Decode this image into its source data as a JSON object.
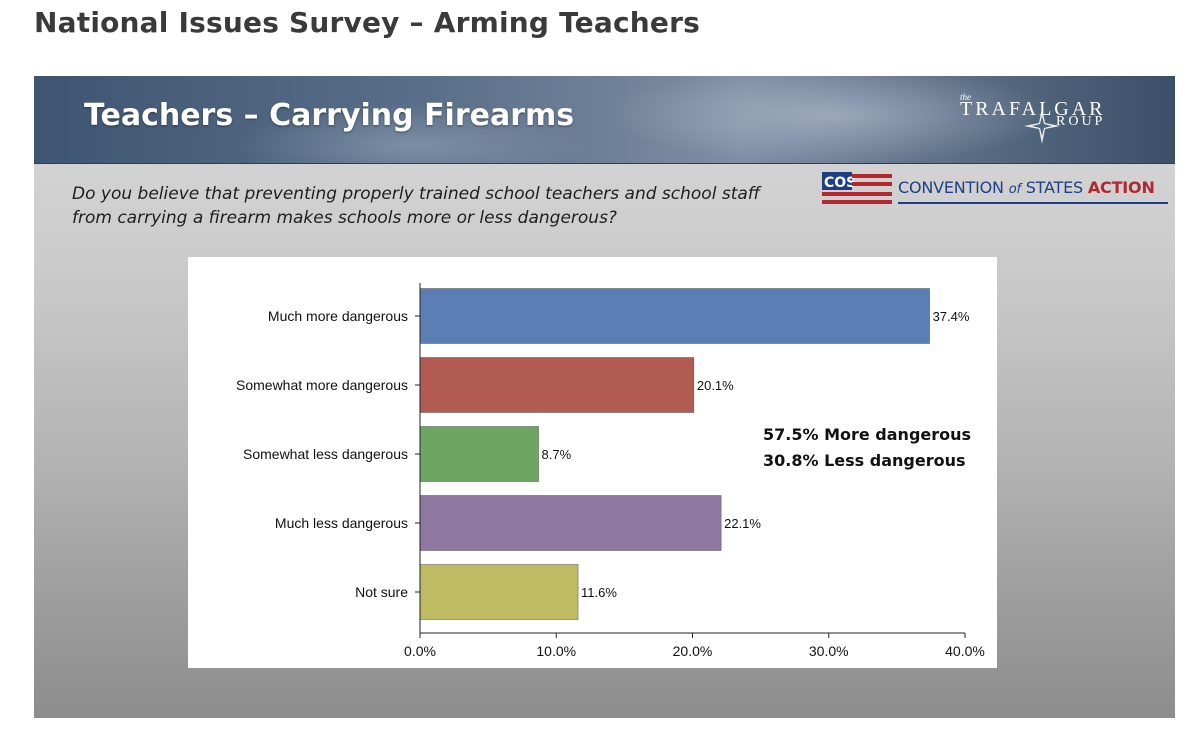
{
  "page": {
    "title": "National Issues Survey – Arming Teachers"
  },
  "slide": {
    "title": "Teachers – Carrying Firearms",
    "question_line1": "Do you believe that preventing properly trained school teachers and school staff",
    "question_line2": "from carrying a firearm makes schools more or less dangerous?",
    "summary_line1": "57.5% More dangerous",
    "summary_line2": "30.8% Less dangerous"
  },
  "logos": {
    "trafalgar": {
      "the": "the",
      "line1": "TRAFALGAR",
      "line2": "ROUP"
    },
    "cos": {
      "flag_text": "COS",
      "text_main": "CONVENTION ",
      "text_of": "of",
      "text_states": " STATES ",
      "text_action": "ACTION"
    }
  },
  "colors": {
    "flag_blue": "#1d3f87",
    "flag_red": "#b3282e"
  },
  "chart_data": {
    "type": "bar",
    "orientation": "horizontal",
    "categories": [
      "Much more dangerous",
      "Somewhat more dangerous",
      "Somewhat less dangerous",
      "Much less dangerous",
      "Not sure"
    ],
    "values": [
      37.4,
      20.1,
      8.7,
      22.1,
      11.6
    ],
    "value_labels": [
      "37.4%",
      "20.1%",
      "8.7%",
      "22.1%",
      "11.6%"
    ],
    "colors": [
      "#5b7fb5",
      "#b25b52",
      "#6da562",
      "#8e77a0",
      "#bfbb62"
    ],
    "xlim": [
      0,
      40
    ],
    "xticks": [
      "0.0%",
      "10.0%",
      "20.0%",
      "30.0%",
      "40.0%"
    ],
    "grid": false,
    "legend": "none"
  }
}
